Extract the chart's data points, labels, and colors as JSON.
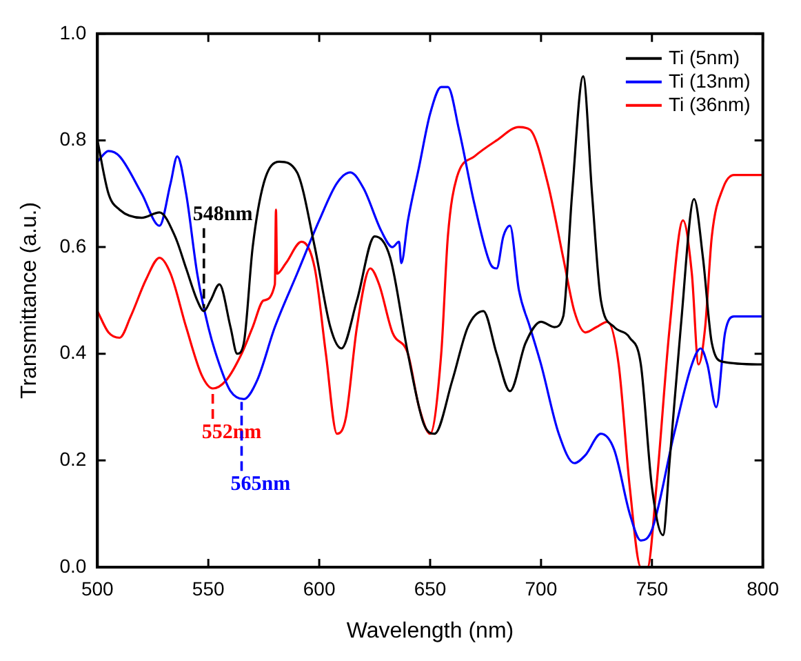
{
  "chart_data": {
    "type": "line",
    "xlabel": "Wavelength (nm)",
    "ylabel": "Transmittance (a.u.)",
    "xlim": [
      500,
      800
    ],
    "xticks": [
      500,
      550,
      600,
      650,
      700,
      750,
      800
    ],
    "ylim": [
      0,
      1
    ],
    "yticks": [
      {
        "value": 0,
        "label": "0.0"
      },
      {
        "value": 0.2,
        "label": "0.2"
      },
      {
        "value": 0.4,
        "label": "0.4"
      },
      {
        "value": 0.6,
        "label": "0.6"
      },
      {
        "value": 0.8,
        "label": "0.8"
      },
      {
        "value": 1,
        "label": "1.0"
      }
    ],
    "grid": false,
    "legend": "top right",
    "marker": "none",
    "line_style": "solid",
    "series": [
      {
        "name": "Ti (5nm)",
        "color": "#000000",
        "x": [
          500,
          505,
          510,
          520,
          528,
          535,
          540,
          545,
          548,
          551,
          555,
          560,
          563,
          566,
          570,
          575,
          582,
          590,
          598,
          605,
          610,
          617,
          625,
          632,
          640,
          647,
          652,
          660,
          667,
          674,
          680,
          686,
          693,
          700,
          706,
          710,
          714,
          719,
          723,
          727,
          733,
          740,
          745,
          750,
          755,
          758,
          763,
          769,
          773,
          777,
          782,
          800
        ],
        "values": [
          0.8,
          0.7,
          0.67,
          0.655,
          0.665,
          0.62,
          0.56,
          0.5,
          0.48,
          0.5,
          0.53,
          0.45,
          0.4,
          0.42,
          0.6,
          0.72,
          0.76,
          0.74,
          0.6,
          0.45,
          0.41,
          0.5,
          0.62,
          0.58,
          0.4,
          0.27,
          0.25,
          0.35,
          0.45,
          0.48,
          0.4,
          0.33,
          0.42,
          0.46,
          0.45,
          0.47,
          0.7,
          0.92,
          0.7,
          0.5,
          0.45,
          0.43,
          0.38,
          0.15,
          0.06,
          0.2,
          0.45,
          0.69,
          0.58,
          0.42,
          0.385,
          0.38
        ]
      },
      {
        "name": "Ti (13nm)",
        "color": "#0000ff",
        "x": [
          500,
          505,
          510,
          520,
          528,
          533,
          536,
          540,
          545,
          550,
          555,
          560,
          566,
          572,
          580,
          590,
          600,
          608,
          614,
          620,
          628,
          633,
          636,
          637,
          640,
          645,
          650,
          655,
          658,
          663,
          670,
          677,
          680,
          683,
          686,
          690,
          695,
          700,
          708,
          715,
          720,
          727,
          733,
          740,
          745,
          750,
          760,
          768,
          772,
          775,
          779,
          783,
          787,
          800
        ],
        "values": [
          0.76,
          0.78,
          0.77,
          0.7,
          0.64,
          0.72,
          0.77,
          0.7,
          0.55,
          0.45,
          0.38,
          0.33,
          0.315,
          0.35,
          0.45,
          0.55,
          0.65,
          0.72,
          0.74,
          0.71,
          0.63,
          0.6,
          0.61,
          0.57,
          0.65,
          0.75,
          0.85,
          0.9,
          0.9,
          0.82,
          0.68,
          0.57,
          0.56,
          0.62,
          0.64,
          0.52,
          0.45,
          0.38,
          0.25,
          0.195,
          0.21,
          0.25,
          0.22,
          0.1,
          0.05,
          0.07,
          0.25,
          0.38,
          0.41,
          0.38,
          0.3,
          0.44,
          0.47,
          0.47
        ]
      },
      {
        "name": "Ti (36nm)",
        "color": "#ff0000",
        "x": [
          500,
          505,
          510,
          515,
          522,
          528,
          533,
          540,
          547,
          552,
          558,
          565,
          570,
          575,
          580,
          580.5,
          581,
          585,
          592,
          598,
          603,
          608,
          612,
          617,
          623,
          627,
          633,
          640,
          645,
          650,
          655,
          658,
          662,
          670,
          680,
          690,
          695,
          703,
          710,
          715,
          720,
          725,
          730,
          735,
          740,
          745,
          748,
          752,
          758,
          764,
          768,
          771,
          774,
          777,
          782,
          787,
          800
        ],
        "values": [
          0.48,
          0.44,
          0.43,
          0.47,
          0.54,
          0.58,
          0.55,
          0.45,
          0.36,
          0.335,
          0.35,
          0.4,
          0.45,
          0.5,
          0.53,
          0.67,
          0.55,
          0.57,
          0.61,
          0.56,
          0.4,
          0.25,
          0.28,
          0.45,
          0.56,
          0.53,
          0.44,
          0.4,
          0.3,
          0.25,
          0.4,
          0.62,
          0.73,
          0.77,
          0.8,
          0.825,
          0.82,
          0.72,
          0.58,
          0.48,
          0.44,
          0.45,
          0.46,
          0.38,
          0.15,
          0,
          0,
          0.15,
          0.45,
          0.65,
          0.55,
          0.38,
          0.45,
          0.62,
          0.71,
          0.735,
          0.735
        ]
      }
    ],
    "annotations": [
      {
        "text": "548nm",
        "x": 548,
        "y": 0.48
      },
      {
        "text": "552nm",
        "x": 552,
        "y": 0.335
      },
      {
        "text": "565nm",
        "x": 565,
        "y": 0.315
      }
    ]
  }
}
